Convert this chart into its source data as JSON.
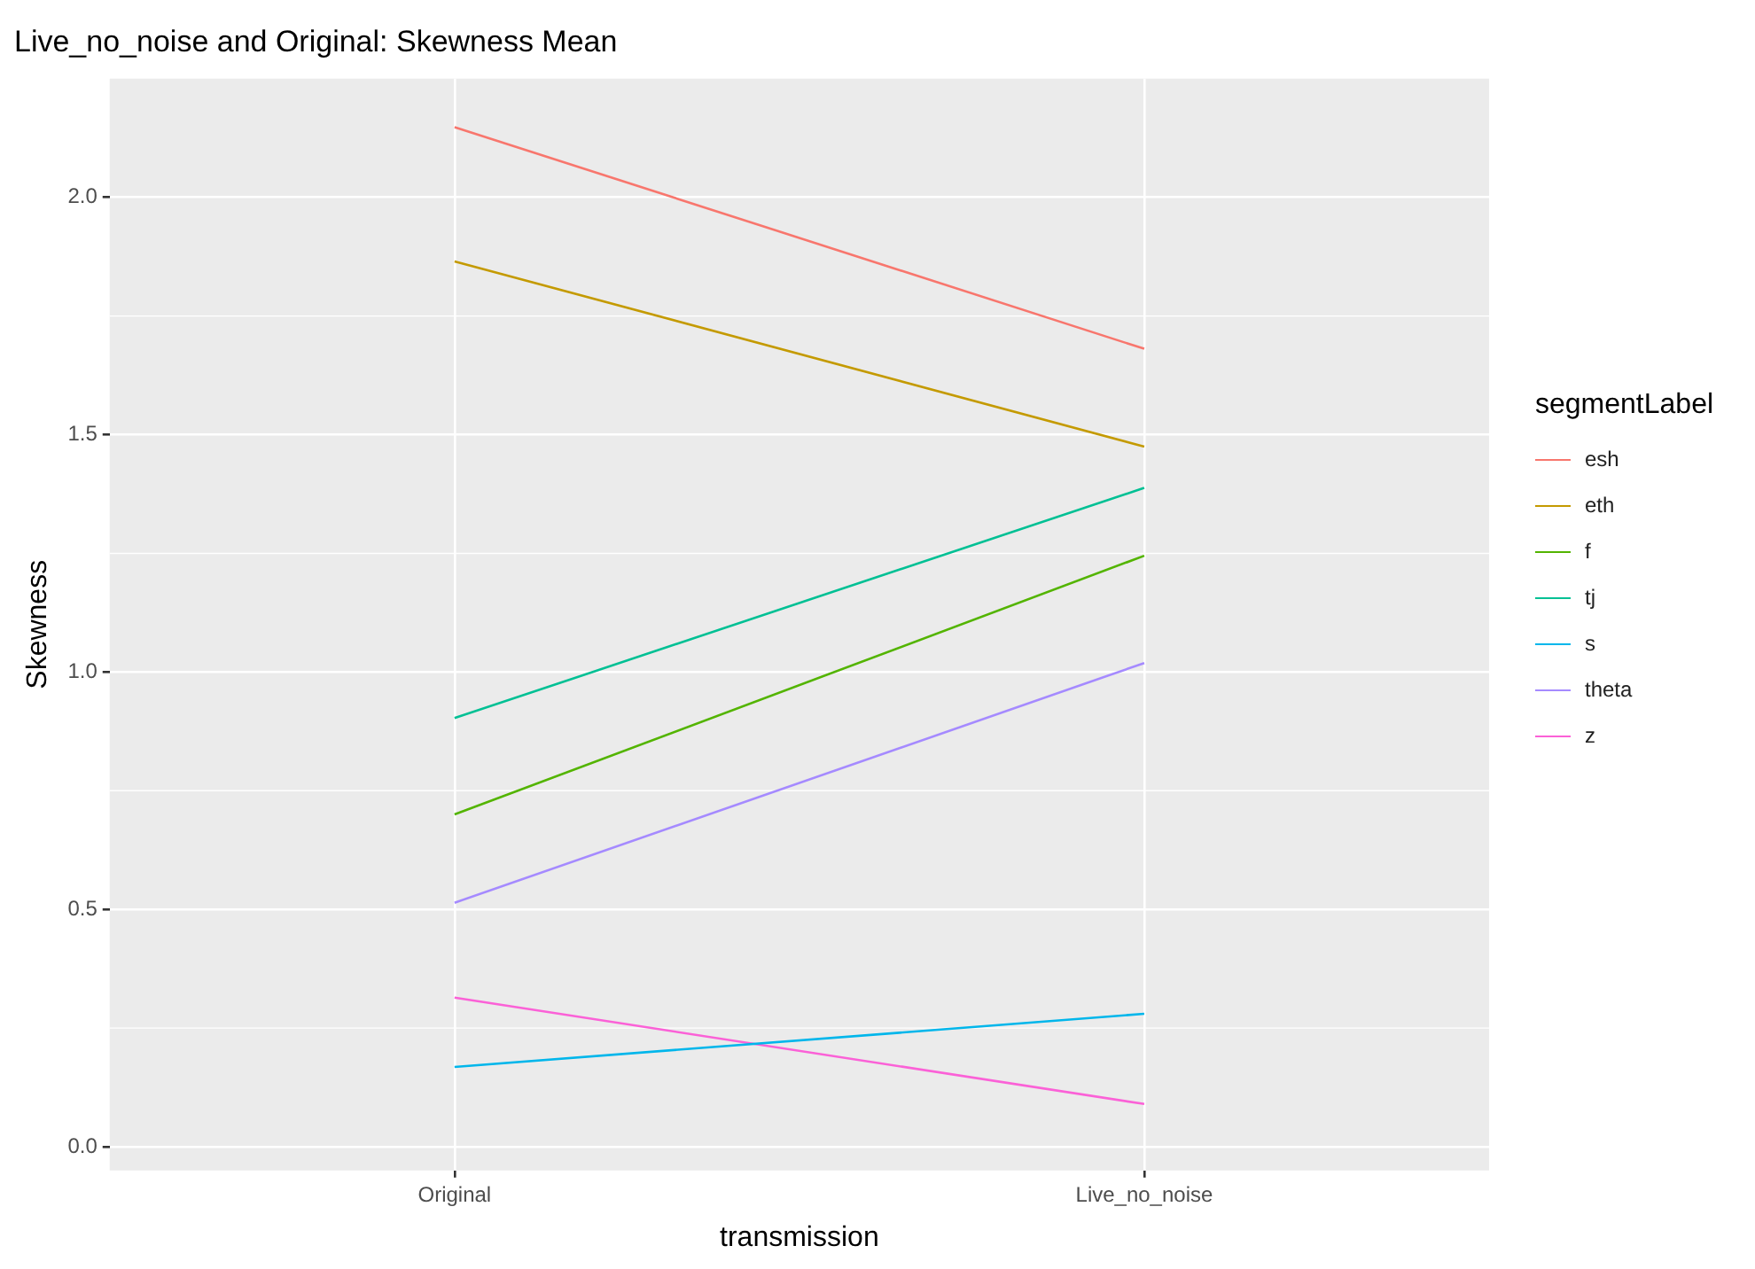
{
  "chart_data": {
    "type": "line",
    "title": "Live_no_noise and Original: Skewness Mean",
    "xlabel": "transmission",
    "ylabel": "Skewness",
    "legend_title": "segmentLabel",
    "categories": [
      "Original",
      "Live_no_noise"
    ],
    "series": [
      {
        "name": "esh",
        "color": "#f8766d",
        "values": [
          2.148,
          1.681
        ]
      },
      {
        "name": "eth",
        "color": "#c49a00",
        "values": [
          1.865,
          1.475
        ]
      },
      {
        "name": "f",
        "color": "#53b400",
        "values": [
          0.7,
          1.245
        ]
      },
      {
        "name": "tj",
        "color": "#00c094",
        "values": [
          0.903,
          1.388
        ]
      },
      {
        "name": "s",
        "color": "#00b6eb",
        "values": [
          0.168,
          0.28
        ]
      },
      {
        "name": "theta",
        "color": "#a58aff",
        "values": [
          0.514,
          1.019
        ]
      },
      {
        "name": "z",
        "color": "#fb61d7",
        "values": [
          0.314,
          0.09
        ]
      }
    ],
    "ylim": [
      -0.05,
      2.25
    ],
    "yticks": [
      {
        "value": 0,
        "label": "0.0"
      },
      {
        "value": 0.5,
        "label": "0.5"
      },
      {
        "value": 1,
        "label": "1.0"
      },
      {
        "value": 1.5,
        "label": "1.5"
      },
      {
        "value": 2,
        "label": "2.0"
      }
    ],
    "grid": true,
    "legend": "right",
    "marker": "none",
    "line_style": "solid"
  }
}
